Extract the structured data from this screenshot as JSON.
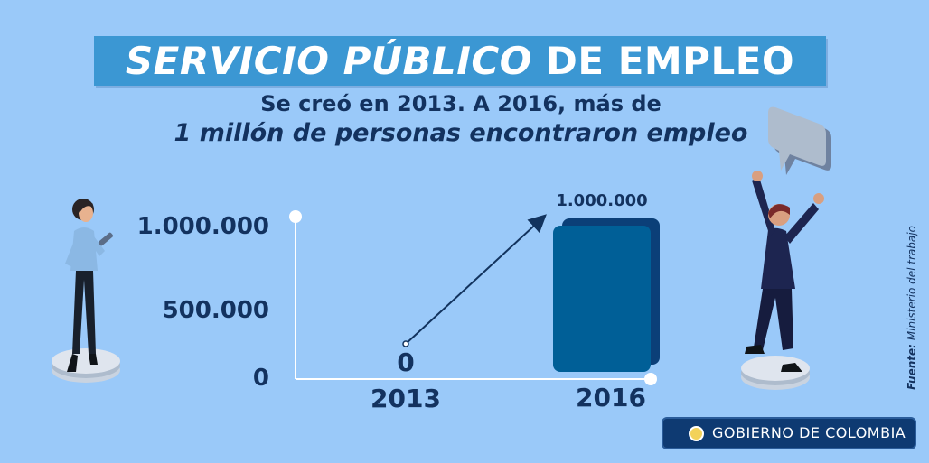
{
  "header": {
    "title_part1": "SERVICIO  PÚBLICO",
    "title_part2": " DE EMPLEO",
    "subtitle_line1": "Se creó en 2013. A 2016, más de",
    "subtitle_line2": "1 millón de personas encontraron empleo"
  },
  "chart_data": {
    "type": "bar",
    "categories": [
      "2013",
      "2016"
    ],
    "values": [
      0,
      1000000
    ],
    "value_labels": [
      "0",
      "1.000.000"
    ],
    "ylim": [
      0,
      1000000
    ],
    "yticks": [
      {
        "value": 0,
        "label": "0"
      },
      {
        "value": 500000,
        "label": "500.000"
      },
      {
        "value": 1000000,
        "label": "1.000.000"
      }
    ],
    "title": "Servicio Público de Empleo",
    "xlabel": "",
    "ylabel": "",
    "annotation": "growth arrow from 2013 to 2016",
    "colors": {
      "bar": "#005f97",
      "bar_shadow": "#0b3f78",
      "axis": "#ffffff",
      "arrow": "#12335e"
    }
  },
  "footer": {
    "source_label": "Fuente:",
    "source_text": " Ministerio del trabajo",
    "gov_label": "GOBIERNO DE COLOMBIA"
  }
}
